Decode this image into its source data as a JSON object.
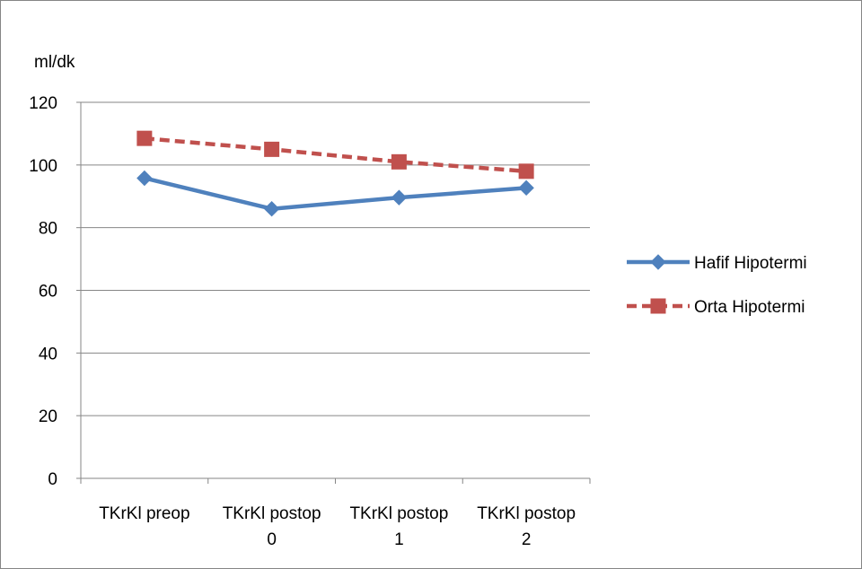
{
  "chart_data": {
    "type": "line",
    "title": "",
    "ylabel": "ml/dk",
    "xlabel": "",
    "ylim": [
      0,
      120
    ],
    "ytick_step": 20,
    "grid": true,
    "legend_position": "right",
    "categories": [
      [
        "TKrKl preop"
      ],
      [
        "TKrKl postop",
        "0"
      ],
      [
        "TKrKl postop",
        "1"
      ],
      [
        "TKrKl postop",
        "2"
      ]
    ],
    "series": [
      {
        "name": "Hafif Hipotermi",
        "values": [
          95.8,
          86.0,
          89.6,
          92.7
        ],
        "color": "#4F81BD",
        "marker": "diamond",
        "line_style": "solid"
      },
      {
        "name": "Orta Hipotermi",
        "values": [
          108.5,
          105.0,
          101.0,
          98.0
        ],
        "color": "#C0504D",
        "marker": "square",
        "line_style": "dashed"
      }
    ],
    "colors": {
      "gridline": "#868686",
      "axis": "#868686",
      "text": "#000000"
    }
  }
}
